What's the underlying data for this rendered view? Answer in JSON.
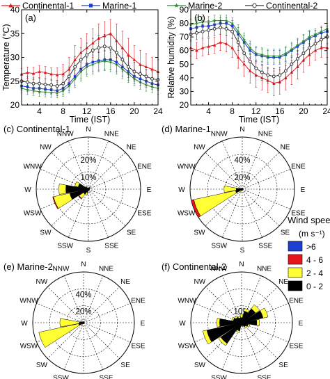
{
  "legend_top": [
    {
      "name": "Continental-1",
      "color": "#e8141b",
      "marker": "triangle"
    },
    {
      "name": "Marine-1",
      "color": "#1f3fd1",
      "marker": "square"
    },
    {
      "name": "Marine-2",
      "color": "#2e8b2e",
      "marker": "star"
    },
    {
      "name": "Continental-2",
      "color": "#333333",
      "marker": "circle"
    }
  ],
  "wind_legend": {
    "title": "Wind speed",
    "unit": "(m s⁻¹)",
    "bins": [
      {
        "label": ">6",
        "color": "#1f3fd1"
      },
      {
        "label": "4 - 6",
        "color": "#e8141b"
      },
      {
        "label": "2 - 4",
        "color": "#ffff33"
      },
      {
        "label": "0 - 2",
        "color": "#000000"
      }
    ]
  },
  "directions": [
    "N",
    "NNE",
    "NE",
    "ENE",
    "E",
    "ESE",
    "SE",
    "SSE",
    "S",
    "SSW",
    "SW",
    "WSW",
    "W",
    "WNW",
    "NW",
    "NNW"
  ],
  "chart_data": [
    {
      "type": "line",
      "panel": "(a)",
      "xlabel": "Time (IST)",
      "ylabel": "Temperature (°C)",
      "xlim": [
        1,
        24
      ],
      "ylim": [
        20,
        40
      ],
      "xticks": [
        4,
        8,
        12,
        16,
        20,
        24
      ],
      "yticks": [
        20,
        25,
        30,
        35,
        40
      ],
      "x": [
        1,
        2,
        3,
        4,
        5,
        6,
        7,
        8,
        9,
        10,
        11,
        12,
        13,
        14,
        15,
        16,
        17,
        18,
        19,
        20,
        21,
        22,
        23,
        24
      ],
      "series": [
        {
          "name": "Continental-1",
          "values": [
            26.5,
            26.8,
            26.6,
            27.0,
            26.8,
            26.5,
            26.3,
            26.5,
            27.5,
            29.5,
            31.0,
            32.0,
            33.0,
            34.0,
            34.5,
            35.0,
            33.5,
            32.0,
            30.5,
            29.5,
            28.5,
            28.0,
            27.5,
            27.0
          ],
          "err": [
            1.2,
            1.2,
            1.3,
            1.3,
            1.3,
            1.3,
            1.5,
            2.0,
            2.5,
            3.0,
            3.0,
            3.0,
            3.0,
            3.0,
            3.0,
            3.0,
            3.5,
            3.5,
            3.5,
            3.0,
            3.0,
            2.8,
            2.5,
            2.5
          ]
        },
        {
          "name": "Marine-1",
          "values": [
            24.0,
            23.8,
            23.5,
            23.5,
            23.3,
            23.2,
            23.0,
            23.5,
            24.5,
            26.0,
            27.5,
            28.5,
            29.0,
            29.3,
            29.5,
            29.5,
            29.0,
            28.0,
            27.0,
            26.0,
            25.5,
            25.0,
            24.5,
            24.2
          ],
          "err": [
            1.0,
            1.0,
            1.0,
            1.0,
            1.0,
            1.0,
            1.0,
            1.2,
            1.5,
            1.8,
            2.0,
            2.0,
            2.0,
            2.0,
            2.0,
            2.0,
            2.0,
            2.0,
            1.8,
            1.5,
            1.5,
            1.3,
            1.2,
            1.2
          ]
        },
        {
          "name": "Marine-2",
          "values": [
            23.5,
            23.2,
            23.0,
            22.8,
            22.7,
            22.6,
            22.5,
            23.0,
            24.0,
            25.5,
            27.0,
            28.0,
            28.5,
            29.0,
            29.2,
            29.0,
            28.5,
            27.5,
            26.5,
            25.5,
            24.8,
            24.2,
            23.8,
            23.5
          ],
          "err": [
            1.0,
            1.0,
            1.0,
            1.0,
            1.0,
            1.0,
            1.0,
            1.2,
            1.5,
            1.8,
            2.0,
            2.0,
            2.0,
            2.0,
            2.0,
            2.0,
            2.0,
            2.0,
            1.8,
            1.5,
            1.5,
            1.3,
            1.2,
            1.2
          ]
        },
        {
          "name": "Continental-2",
          "values": [
            25.0,
            24.8,
            24.5,
            24.5,
            24.3,
            24.2,
            24.0,
            24.5,
            26.0,
            28.0,
            29.5,
            30.5,
            31.5,
            32.0,
            32.3,
            32.0,
            31.0,
            29.5,
            28.0,
            27.0,
            26.5,
            26.0,
            25.5,
            25.3
          ],
          "err": [
            1.2,
            1.2,
            1.2,
            1.2,
            1.2,
            1.2,
            1.2,
            1.5,
            2.0,
            2.2,
            2.5,
            2.5,
            2.5,
            2.5,
            2.5,
            2.5,
            2.5,
            2.5,
            2.2,
            2.0,
            1.8,
            1.5,
            1.5,
            1.5
          ]
        }
      ]
    },
    {
      "type": "line",
      "panel": "(b)",
      "xlabel": "Time (IST)",
      "ylabel": "Relative humidity (%)",
      "xlim": [
        1,
        24
      ],
      "ylim": [
        20,
        90
      ],
      "xticks": [
        4,
        8,
        12,
        16,
        20,
        24
      ],
      "yticks": [
        20,
        30,
        40,
        50,
        60,
        70,
        80,
        90
      ],
      "x": [
        1,
        2,
        3,
        4,
        5,
        6,
        7,
        8,
        9,
        10,
        11,
        12,
        13,
        14,
        15,
        16,
        17,
        18,
        19,
        20,
        21,
        22,
        23,
        24
      ],
      "series": [
        {
          "name": "Continental-1",
          "values": [
            62,
            60,
            62,
            63,
            64,
            66,
            65,
            62,
            55,
            50,
            45,
            42,
            40,
            38,
            36,
            37,
            40,
            44,
            48,
            53,
            57,
            60,
            62,
            62
          ],
          "err": [
            6,
            6,
            6,
            6,
            6,
            6,
            6,
            7,
            8,
            9,
            9,
            9,
            9,
            9,
            9,
            9,
            9,
            9,
            9,
            9,
            8,
            7,
            7,
            7
          ]
        },
        {
          "name": "Marine-1",
          "values": [
            76,
            77,
            78,
            78,
            79,
            80,
            80,
            78,
            72,
            66,
            60,
            57,
            56,
            55,
            55,
            55,
            57,
            60,
            63,
            66,
            69,
            71,
            73,
            74
          ],
          "err": [
            4,
            4,
            4,
            4,
            4,
            4,
            4,
            4,
            5,
            5,
            5,
            5,
            5,
            5,
            5,
            5,
            5,
            5,
            5,
            5,
            5,
            4,
            4,
            4
          ]
        },
        {
          "name": "Marine-2",
          "values": [
            79,
            80,
            81,
            81,
            82,
            82,
            82,
            80,
            74,
            68,
            62,
            58,
            57,
            56,
            56,
            56,
            58,
            61,
            64,
            67,
            70,
            72,
            74,
            76
          ],
          "err": [
            4,
            4,
            4,
            4,
            4,
            4,
            4,
            4,
            5,
            5,
            5,
            5,
            5,
            5,
            5,
            5,
            5,
            5,
            5,
            5,
            5,
            4,
            4,
            4
          ]
        },
        {
          "name": "Continental-2",
          "values": [
            72,
            73,
            74,
            75,
            76,
            77,
            76,
            74,
            66,
            58,
            52,
            47,
            44,
            42,
            41,
            42,
            45,
            50,
            54,
            58,
            62,
            65,
            68,
            70
          ],
          "err": [
            5,
            5,
            5,
            5,
            5,
            5,
            5,
            5,
            6,
            6,
            6,
            6,
            6,
            6,
            6,
            6,
            6,
            6,
            6,
            6,
            6,
            5,
            5,
            5
          ]
        }
      ]
    },
    {
      "type": "windrose",
      "panel": "(c)",
      "title": "Continental-1",
      "rings": [
        10,
        20,
        30
      ],
      "ring_labels": [
        "10%",
        "20%"
      ],
      "directions": [
        "N",
        "NNE",
        "NE",
        "ENE",
        "E",
        "ESE",
        "SE",
        "SSE",
        "S",
        "SSW",
        "SW",
        "WSW",
        "W",
        "WNW",
        "NW",
        "NNW"
      ],
      "bins": [
        "0 - 2",
        "2 - 4",
        "4 - 6",
        ">6"
      ],
      "freq": [
        [
          0.3,
          0.2,
          0,
          0
        ],
        [
          0.8,
          0.4,
          0,
          0
        ],
        [
          1.0,
          0.5,
          0,
          0
        ],
        [
          0.8,
          0.3,
          0,
          0
        ],
        [
          0.5,
          0.2,
          0,
          0
        ],
        [
          0.3,
          0,
          0,
          0
        ],
        [
          0.5,
          0.3,
          0,
          0
        ],
        [
          0.8,
          0.3,
          0,
          0
        ],
        [
          0.5,
          0.3,
          0,
          0
        ],
        [
          2.0,
          1.5,
          0,
          0
        ],
        [
          3.5,
          3.0,
          0.5,
          0
        ],
        [
          11.0,
          9.5,
          0.5,
          0
        ],
        [
          13.0,
          4.0,
          0,
          0
        ],
        [
          6.0,
          2.0,
          0,
          0
        ],
        [
          1.5,
          0.5,
          0,
          0
        ],
        [
          0.5,
          0.2,
          0,
          0
        ]
      ]
    },
    {
      "type": "windrose",
      "panel": "(d)",
      "title": "Marine-1",
      "rings": [
        20,
        40,
        60
      ],
      "ring_labels": [
        "20%",
        "40%"
      ],
      "directions": [
        "N",
        "NNE",
        "NE",
        "ENE",
        "E",
        "ESE",
        "SE",
        "SSE",
        "S",
        "SSW",
        "SW",
        "WSW",
        "W",
        "WNW",
        "NW",
        "NNW"
      ],
      "bins": [
        "0 - 2",
        "2 - 4",
        "4 - 6",
        ">6"
      ],
      "freq": [
        [
          0.3,
          0,
          0,
          0
        ],
        [
          0.5,
          0,
          0,
          0
        ],
        [
          0.5,
          0,
          0,
          0
        ],
        [
          0.5,
          0,
          0,
          0
        ],
        [
          0.3,
          0,
          0,
          0
        ],
        [
          0.3,
          0,
          0,
          0
        ],
        [
          0.3,
          0,
          0,
          0
        ],
        [
          0.3,
          0,
          0,
          0
        ],
        [
          0.3,
          0,
          0,
          0
        ],
        [
          1.0,
          1.0,
          0,
          0
        ],
        [
          2.0,
          3.0,
          0,
          0
        ],
        [
          8.0,
          49.0,
          3.0,
          0
        ],
        [
          7.0,
          14.0,
          0,
          0
        ],
        [
          2.0,
          1.0,
          0,
          0
        ],
        [
          0.5,
          0,
          0,
          0
        ],
        [
          0.3,
          0,
          0,
          0
        ]
      ]
    },
    {
      "type": "windrose",
      "panel": "(e)",
      "title": "Marine-2",
      "rings": [
        20,
        40,
        60
      ],
      "ring_labels": [
        "20%",
        "40%"
      ],
      "directions": [
        "N",
        "NNE",
        "NE",
        "ENE",
        "E",
        "ESE",
        "SE",
        "SSE",
        "S",
        "SSW",
        "SW",
        "WSW",
        "W",
        "WNW",
        "NW",
        "NNW"
      ],
      "bins": [
        "0 - 2",
        "2 - 4",
        "4 - 6",
        ">6"
      ],
      "freq": [
        [
          0.3,
          0,
          0,
          0
        ],
        [
          0.3,
          0,
          0,
          0
        ],
        [
          0.5,
          0,
          0,
          0
        ],
        [
          0.5,
          0,
          0,
          0
        ],
        [
          0.3,
          0,
          0,
          0
        ],
        [
          0.3,
          0,
          0,
          0
        ],
        [
          0.3,
          0,
          0,
          0
        ],
        [
          0.3,
          0,
          0,
          0
        ],
        [
          0.3,
          0,
          0,
          0
        ],
        [
          1.0,
          0.5,
          0,
          0
        ],
        [
          2.0,
          2.0,
          0,
          0
        ],
        [
          6.0,
          48.0,
          0,
          0
        ],
        [
          5.0,
          23.0,
          0,
          0
        ],
        [
          2.0,
          1.0,
          0,
          0
        ],
        [
          0.5,
          0,
          0,
          0
        ],
        [
          0.3,
          0,
          0,
          0
        ]
      ]
    },
    {
      "type": "windrose",
      "panel": "(f)",
      "title": "Continental-2",
      "rings": [
        5,
        10,
        15
      ],
      "ring_labels": [
        "10%"
      ],
      "directions": [
        "N",
        "NNE",
        "NE",
        "ENE",
        "E",
        "ESE",
        "SE",
        "SSE",
        "S",
        "SSW",
        "SW",
        "WSW",
        "W",
        "WNW",
        "NW",
        "NNW"
      ],
      "bins": [
        "0 - 2",
        "2 - 4",
        "4 - 6",
        ">6"
      ],
      "freq": [
        [
          1.5,
          1.0,
          0,
          0
        ],
        [
          3.5,
          0.8,
          0,
          0
        ],
        [
          5.0,
          1.5,
          0,
          0
        ],
        [
          6.5,
          1.5,
          0,
          0
        ],
        [
          4.5,
          0.8,
          0,
          0
        ],
        [
          2.0,
          0.5,
          0,
          0
        ],
        [
          1.5,
          0.5,
          0,
          0
        ],
        [
          1.0,
          0.3,
          0,
          0
        ],
        [
          0.8,
          0.2,
          0,
          0
        ],
        [
          2.5,
          0.5,
          0,
          0
        ],
        [
          7.5,
          0.8,
          0,
          0
        ],
        [
          10.5,
          1.2,
          0,
          0
        ],
        [
          6.5,
          0.8,
          0,
          0
        ],
        [
          2.5,
          0.5,
          0,
          0
        ],
        [
          2.0,
          0.5,
          0,
          0
        ],
        [
          1.5,
          0.5,
          0,
          0
        ]
      ]
    }
  ]
}
